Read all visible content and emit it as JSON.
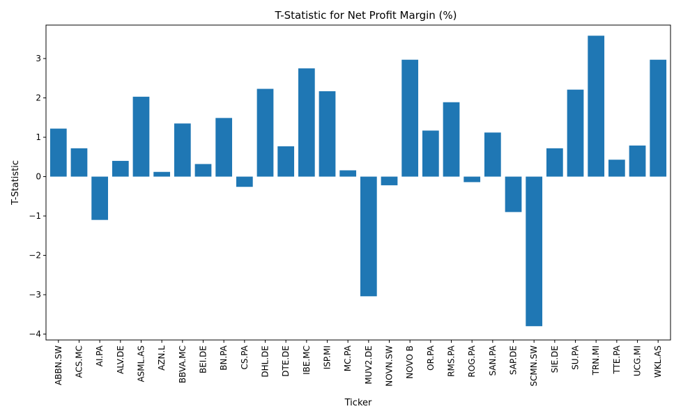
{
  "chart_data": {
    "type": "bar",
    "title": "T-Statistic for Net Profit Margin (%)",
    "xlabel": "Ticker",
    "ylabel": "T-Statistic",
    "ylim": [
      -4.15,
      3.85
    ],
    "yticks": [
      -4,
      -3,
      -2,
      -1,
      0,
      1,
      2,
      3
    ],
    "grid": false,
    "bar_color": "#1f77b4",
    "categories": [
      "ABBN.SW",
      "ACS.MC",
      "AI.PA",
      "ALV.DE",
      "ASML.AS",
      "AZN.L",
      "BBVA.MC",
      "BEI.DE",
      "BN.PA",
      "CS.PA",
      "DHL.DE",
      "DTE.DE",
      "IBE.MC",
      "ISP.MI",
      "MC.PA",
      "MUV2.DE",
      "NOVN.SW",
      "NOVO B",
      "OR.PA",
      "RMS.PA",
      "ROG.PA",
      "SAN.PA",
      "SAP.DE",
      "SCMN.SW",
      "SIE.DE",
      "SU.PA",
      "TRN.MI",
      "TTE.PA",
      "UCG.MI",
      "WKL.AS"
    ],
    "values": [
      1.22,
      0.72,
      -1.1,
      0.4,
      2.03,
      0.12,
      1.35,
      0.32,
      1.49,
      -0.26,
      2.23,
      0.77,
      2.75,
      2.17,
      0.16,
      -3.04,
      -0.22,
      2.97,
      1.17,
      1.89,
      -0.14,
      1.12,
      -0.9,
      -3.8,
      0.72,
      2.21,
      3.58,
      0.43,
      0.79,
      2.97
    ]
  }
}
